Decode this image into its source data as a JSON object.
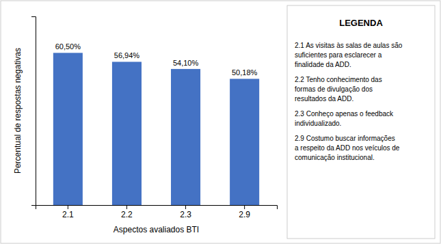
{
  "chart_data": {
    "type": "bar",
    "categories": [
      "2.1",
      "2.2",
      "2.3",
      "2.9"
    ],
    "values": [
      60.5,
      56.94,
      54.1,
      50.18
    ],
    "value_labels": [
      "60,50%",
      "56,94%",
      "54,10%",
      "50,18%"
    ],
    "data_labels": true,
    "color": "#4472C4",
    "x_label": "Aspectos avaliados BTI",
    "y_label": "Percentual de respostas negativas",
    "ylim": [
      0,
      75
    ],
    "grid": false,
    "tick_labels": "x",
    "annotations": [
      "LEGENDA",
      "2.1 As visitas às salas de aulas são\nsuficientes para esclarecer a\nfinalidade da ADD.",
      "2.2 Tenho conhecimento das\nformas de divulgação dos\nresultados da ADD.",
      "2.3 Conheço apenas o feedback\nindividualizado.",
      "2.9 Costumo buscar informações\na respeito da ADD nos veículos de\ncomunicação institucional."
    ]
  }
}
